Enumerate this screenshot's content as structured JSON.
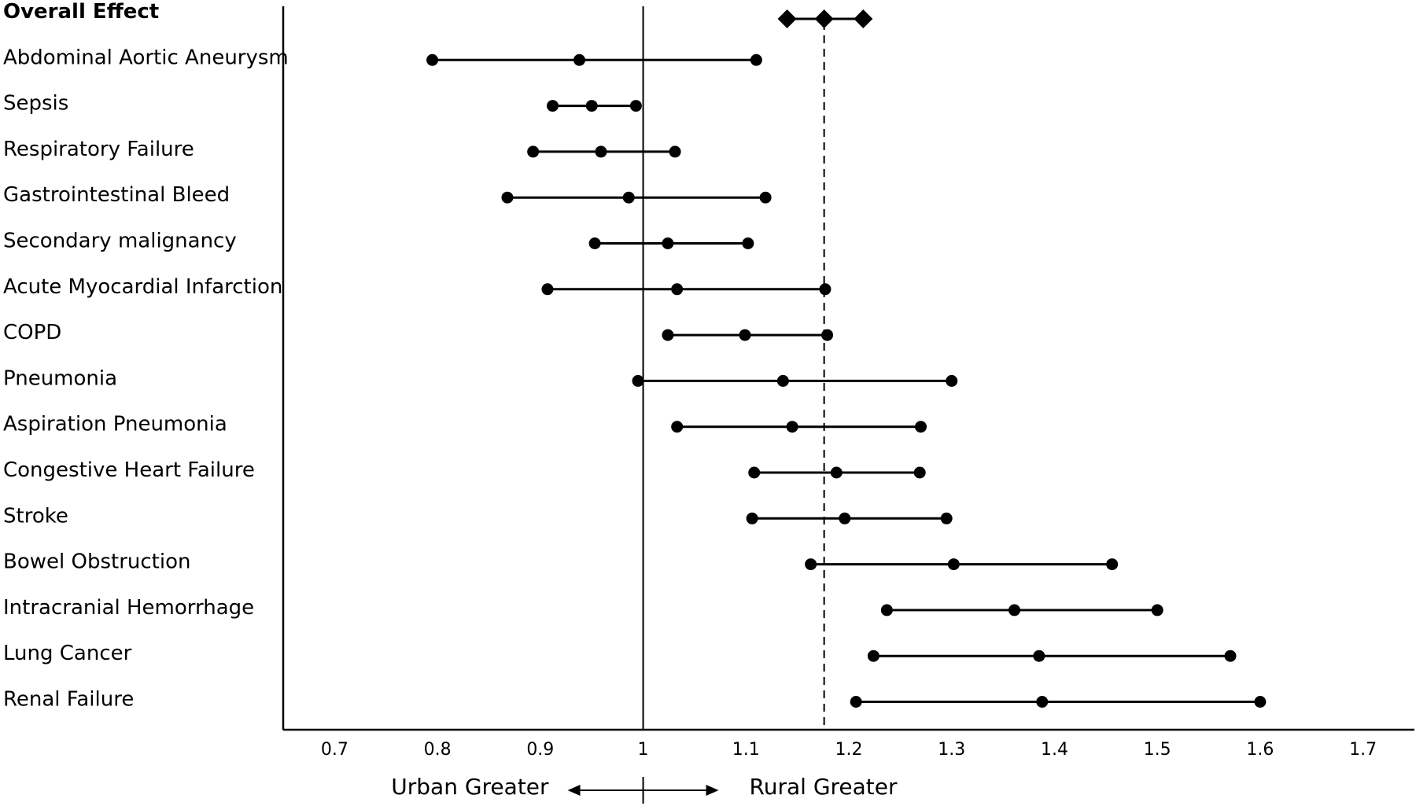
{
  "chart_data": {
    "type": "forest",
    "title": "",
    "xlabel": "",
    "ylabel": "",
    "xlim": [
      0.65,
      1.75
    ],
    "x_ticks": [
      "0.7",
      "0.8",
      "0.9",
      "1",
      "1.1",
      "1.2",
      "1.3",
      "1.4",
      "1.5",
      "1.6",
      "1.7"
    ],
    "reference_line": 1,
    "overall_line": 1.176,
    "grid": false,
    "legend": "none",
    "overall": {
      "label": "Overall Effect",
      "lower": 1.14,
      "estimate": 1.176,
      "upper": 1.214
    },
    "rows": [
      {
        "label": "Abdominal Aortic Aneurysm",
        "lower": 0.795,
        "estimate": 0.938,
        "upper": 1.11
      },
      {
        "label": "Sepsis",
        "lower": 0.912,
        "estimate": 0.95,
        "upper": 0.993
      },
      {
        "label": "Respiratory Failure",
        "lower": 0.893,
        "estimate": 0.959,
        "upper": 1.031
      },
      {
        "label": "Gastrointestinal Bleed",
        "lower": 0.868,
        "estimate": 0.986,
        "upper": 1.119
      },
      {
        "label": "Secondary malignancy",
        "lower": 0.953,
        "estimate": 1.024,
        "upper": 1.102
      },
      {
        "label": "Acute Myocardial Infarction",
        "lower": 0.907,
        "estimate": 1.033,
        "upper": 1.177
      },
      {
        "label": "COPD",
        "lower": 1.024,
        "estimate": 1.099,
        "upper": 1.179
      },
      {
        "label": "Pneumonia",
        "lower": 0.995,
        "estimate": 1.136,
        "upper": 1.3
      },
      {
        "label": "Aspiration Pneumonia",
        "lower": 1.033,
        "estimate": 1.145,
        "upper": 1.27
      },
      {
        "label": "Congestive Heart Failure",
        "lower": 1.108,
        "estimate": 1.188,
        "upper": 1.269
      },
      {
        "label": "Stroke",
        "lower": 1.106,
        "estimate": 1.196,
        "upper": 1.295
      },
      {
        "label": "Bowel Obstruction",
        "lower": 1.163,
        "estimate": 1.302,
        "upper": 1.456
      },
      {
        "label": "Intracranial Hemorrhage",
        "lower": 1.237,
        "estimate": 1.361,
        "upper": 1.5
      },
      {
        "label": "Lung Cancer",
        "lower": 1.224,
        "estimate": 1.385,
        "upper": 1.571
      },
      {
        "label": "Renal Failure",
        "lower": 1.207,
        "estimate": 1.388,
        "upper": 1.6
      }
    ],
    "footer": {
      "left": "Urban Greater",
      "right": "Rural Greater"
    }
  }
}
